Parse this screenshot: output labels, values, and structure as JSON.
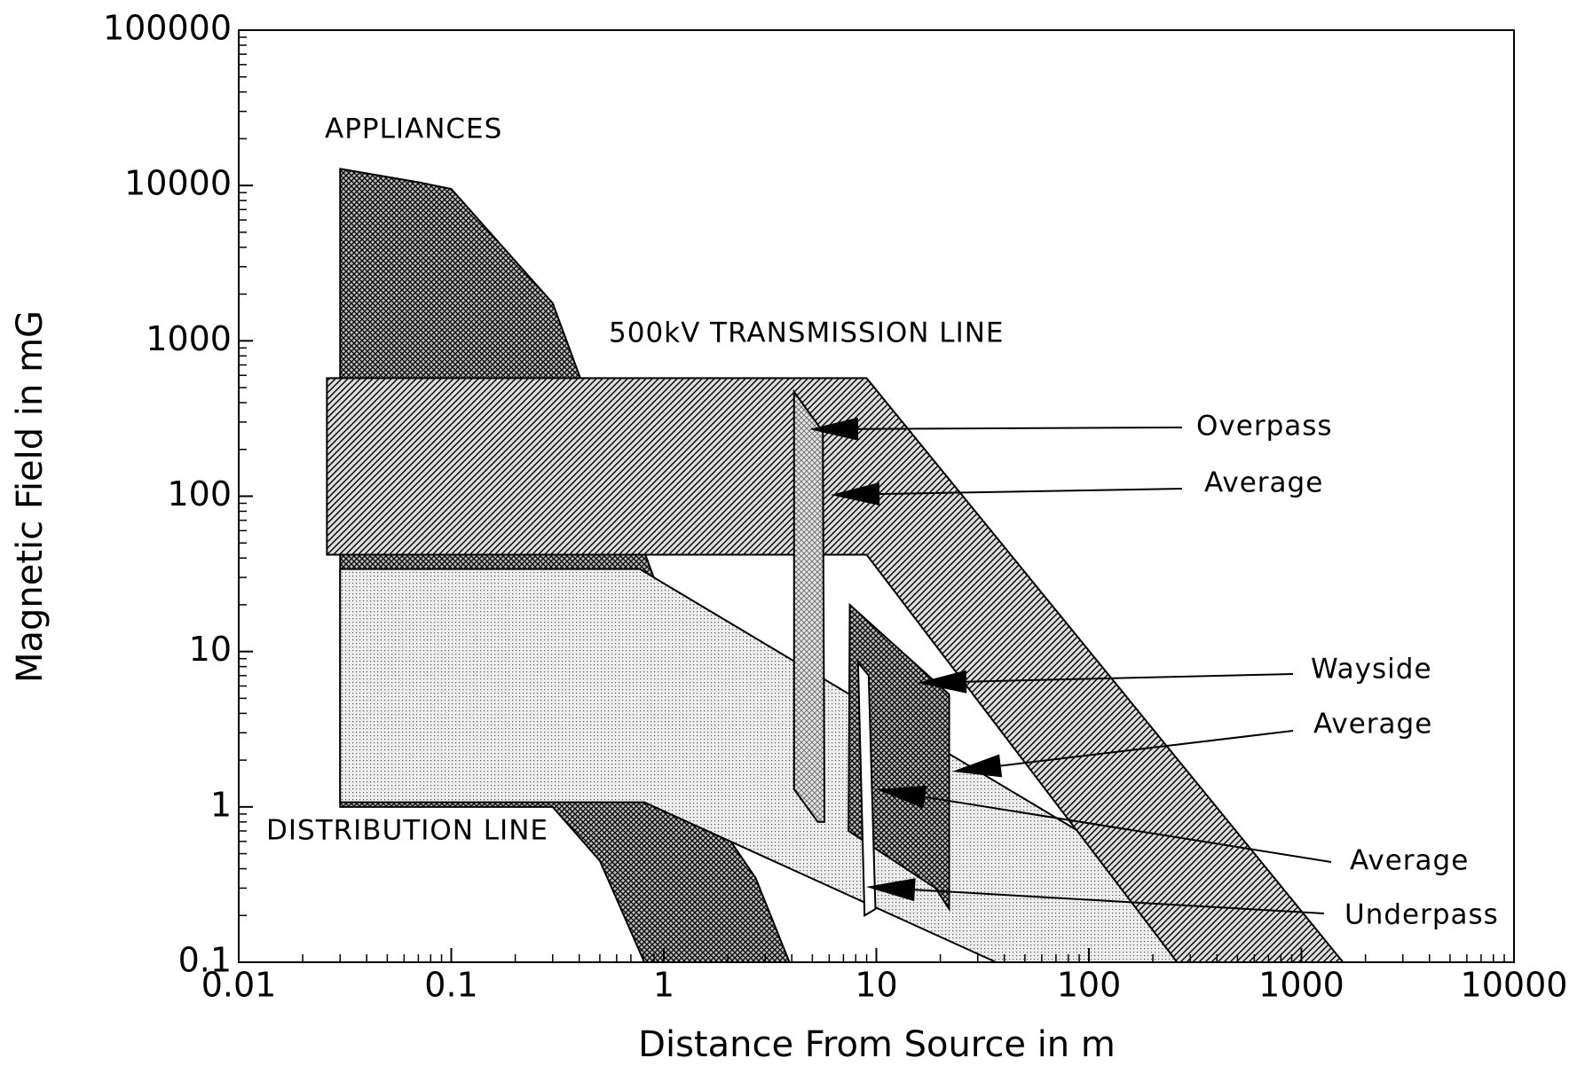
{
  "chart_data": {
    "type": "polygon",
    "xlabel": "Distance From Source in m",
    "ylabel": "Magnetic Field in mG",
    "xscale": "log",
    "yscale": "log",
    "xlim": [
      0.01,
      10000
    ],
    "ylim": [
      0.1,
      100000
    ],
    "xticks": [
      0.01,
      0.1,
      1,
      10,
      100,
      1000,
      10000
    ],
    "yticks": [
      0.1,
      1,
      10,
      100,
      1000,
      10000,
      100000
    ],
    "series": [
      {
        "name": "APPLIANCES",
        "color": "#000000",
        "fill": "crosshatch",
        "x": [
          0.03,
          0.07,
          0.1,
          0.3,
          1,
          1.6,
          2.7,
          3.9,
          0.81,
          0.5,
          0.3,
          0.03
        ],
        "values": [
          12800,
          10500,
          9500,
          1750,
          20,
          1,
          0.35,
          0.1,
          0.1,
          0.45,
          1,
          1
        ]
      },
      {
        "name": "500kV TRANSMISSION LINE",
        "color": "#000000",
        "fill": "hatch",
        "x": [
          0.026,
          9,
          1570,
          260,
          9,
          0.026
        ],
        "values": [
          575,
          575,
          0.1,
          0.1,
          42,
          42
        ]
      },
      {
        "name": "DISTRIBUTION LINE",
        "color": "#000000",
        "fill": "dots",
        "x": [
          0.03,
          0.77,
          87.5,
          260,
          36.6,
          0.81,
          0.03
        ],
        "values": [
          34,
          34,
          0.71,
          0.1,
          0.1,
          1.07,
          1.07
        ]
      },
      {
        "name": "Overpass",
        "color": "#000000",
        "fill": "lightcross",
        "x": [
          4.1,
          5.6,
          5.7,
          5.3,
          4.1
        ],
        "values": [
          470,
          260,
          0.8,
          0.8,
          1.3
        ]
      },
      {
        "name": "Wayside",
        "color": "#000000",
        "fill": "crosshatch",
        "x": [
          7.5,
          22,
          22,
          19,
          7.4
        ],
        "values": [
          20,
          5.3,
          0.22,
          0.3,
          0.7
        ]
      },
      {
        "name": "Underpass",
        "color": "#000000",
        "fill": "white",
        "x": [
          8.2,
          9.2,
          9.9,
          8.8
        ],
        "values": [
          8.5,
          7,
          0.22,
          0.2
        ]
      }
    ],
    "annotations": [
      "APPLIANCES",
      "500kV TRANSMISSION LINE",
      "DISTRIBUTION LINE",
      "Overpass",
      "Average",
      "Wayside",
      "Average",
      "Average",
      "Underpass"
    ]
  }
}
